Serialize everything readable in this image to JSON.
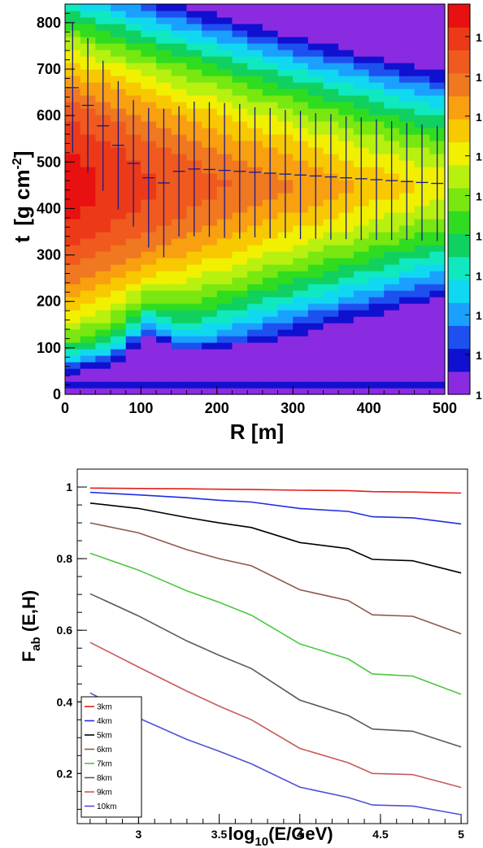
{
  "chart_data": [
    {
      "type": "heatmap",
      "xlabel": "R [m]",
      "ylabel_main": "t",
      "ylabel_unit_prefix": "[g cm",
      "ylabel_unit_sup": "-2",
      "ylabel_unit_suffix": "]",
      "xlim": [
        0,
        500
      ],
      "ylim": [
        0,
        840
      ],
      "x_ticks": [
        "0",
        "100",
        "200",
        "300",
        "400",
        "500"
      ],
      "y_ticks": [
        "0",
        "100",
        "200",
        "300",
        "400",
        "500",
        "600",
        "700",
        "800"
      ],
      "colorbar_tick_labels": [
        "1",
        "1",
        "1",
        "1",
        "1",
        "1",
        "1",
        "1",
        "1",
        "1"
      ],
      "profile": {
        "description_color": "#1a1a8c",
        "R": [
          10,
          30,
          50,
          70,
          90,
          110,
          130,
          150,
          170,
          190,
          210,
          230,
          250,
          270,
          290,
          310,
          330,
          350,
          370,
          390,
          410,
          430,
          450,
          470,
          490
        ],
        "t": [
          660,
          622,
          578,
          536,
          497,
          466,
          455,
          480,
          485,
          484,
          482,
          480,
          478,
          476,
          474,
          472,
          470,
          468,
          466,
          464,
          462,
          460,
          458,
          456,
          454
        ],
        "err": [
          140,
          145,
          140,
          138,
          136,
          150,
          160,
          140,
          145,
          145,
          145,
          145,
          140,
          140,
          138,
          138,
          135,
          135,
          132,
          132,
          130,
          128,
          126,
          125,
          124
        ]
      }
    },
    {
      "type": "line",
      "xlabel_main": "log",
      "xlabel_sub": "10",
      "xlabel_suffix": "(E/GeV)",
      "ylabel_main": "F",
      "ylabel_sub": "ab",
      "ylabel_suffix": " (E,H)",
      "xlim": [
        2.62,
        5.04
      ],
      "ylim": [
        0.06,
        1.05
      ],
      "x_ticks": [
        "3",
        "3.5",
        "4",
        "4.5",
        "5"
      ],
      "y_ticks": [
        "0.2",
        "0.4",
        "0.6",
        "0.8",
        "1"
      ],
      "x": [
        2.7,
        3.0,
        3.3,
        3.5,
        3.7,
        4.0,
        4.3,
        4.45,
        4.7,
        5.0
      ],
      "series": [
        {
          "name": "3km",
          "color": "#e0201c",
          "values": [
            0.997,
            0.996,
            0.995,
            0.994,
            0.993,
            0.991,
            0.99,
            0.987,
            0.986,
            0.983
          ]
        },
        {
          "name": "4km",
          "color": "#1e2ee0",
          "values": [
            0.985,
            0.978,
            0.97,
            0.963,
            0.958,
            0.94,
            0.932,
            0.917,
            0.914,
            0.897
          ]
        },
        {
          "name": "5km",
          "color": "#000000",
          "values": [
            0.955,
            0.94,
            0.915,
            0.9,
            0.887,
            0.845,
            0.828,
            0.798,
            0.794,
            0.76
          ]
        },
        {
          "name": "6km",
          "color": "#8b5a4a",
          "values": [
            0.9,
            0.872,
            0.825,
            0.8,
            0.78,
            0.713,
            0.683,
            0.643,
            0.639,
            0.59
          ]
        },
        {
          "name": "7km",
          "color": "#4cc840",
          "values": [
            0.815,
            0.768,
            0.71,
            0.678,
            0.642,
            0.562,
            0.52,
            0.478,
            0.472,
            0.421
          ]
        },
        {
          "name": "8km",
          "color": "#5a5a5a",
          "values": [
            0.702,
            0.64,
            0.57,
            0.53,
            0.493,
            0.405,
            0.362,
            0.324,
            0.318,
            0.274
          ]
        },
        {
          "name": "9km",
          "color": "#c85a5a",
          "values": [
            0.566,
            0.497,
            0.43,
            0.388,
            0.35,
            0.27,
            0.23,
            0.2,
            0.197,
            0.161
          ]
        },
        {
          "name": "10km",
          "color": "#5050d8",
          "values": [
            0.425,
            0.355,
            0.295,
            0.262,
            0.227,
            0.162,
            0.133,
            0.112,
            0.109,
            0.085
          ]
        }
      ]
    }
  ]
}
